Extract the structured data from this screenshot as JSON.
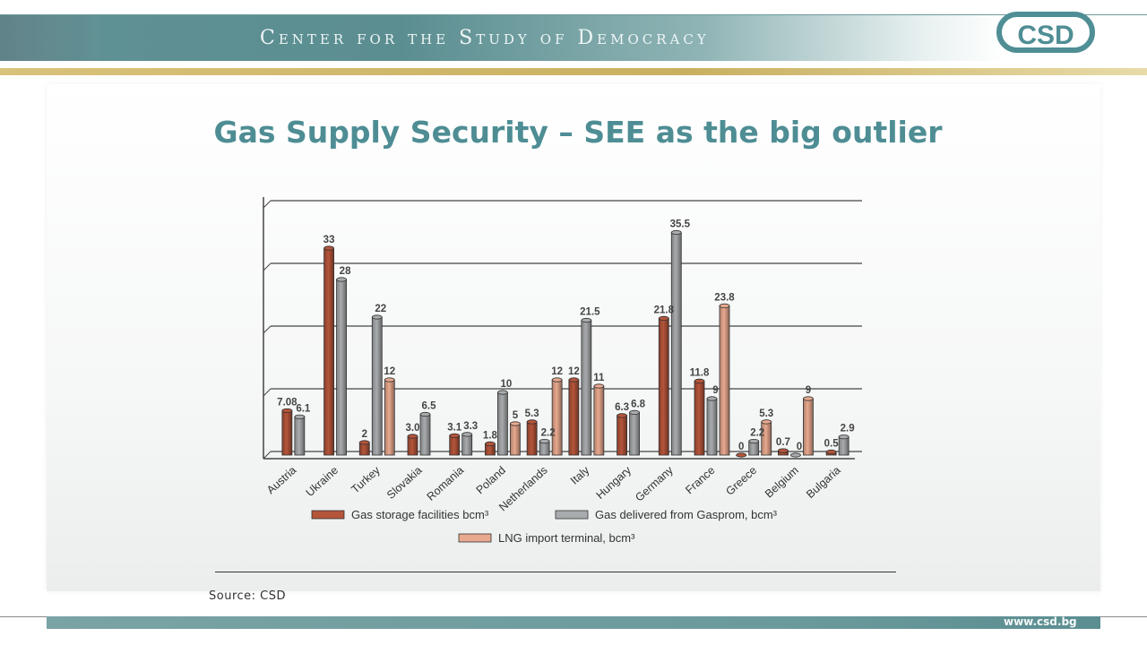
{
  "header": {
    "org_name": "Center for the Study of Democracy",
    "logo_text": "CSD"
  },
  "slide": {
    "title": "Gas Supply Security – SEE as the big outlier",
    "source": "Source: CSD",
    "footer_url": "www.csd.bg"
  },
  "colors": {
    "accent": "#4e8d94",
    "storage": "#b5553a",
    "gazprom": "#a9acae",
    "lng": "#e8a98e"
  },
  "chart_data": {
    "type": "bar",
    "categories": [
      "Austria",
      "Ukraine",
      "Turkey",
      "Slovakia",
      "Romania",
      "Poland",
      "Netherlands",
      "Italy",
      "Hungary",
      "Germany",
      "France",
      "Greece",
      "Belgium",
      "Bulgaria"
    ],
    "series": [
      {
        "name": "Gas storage facilities bcm³",
        "values": [
          7.08,
          33,
          2,
          3.0,
          3.1,
          1.8,
          5.3,
          12,
          6.3,
          21.8,
          11.8,
          0,
          0.7,
          0.5
        ],
        "labels": [
          "7.08",
          "33",
          "2",
          "3.0",
          "3.1",
          "1.8",
          "5.3",
          "12",
          "6.3",
          "21.8",
          "11.8",
          "0",
          "0.7",
          "0.5"
        ]
      },
      {
        "name": "Gas delivered from Gasprom, bcm³",
        "values": [
          6.1,
          28,
          22,
          6.5,
          3.3,
          10,
          2.2,
          21.5,
          6.8,
          35.5,
          9,
          2.2,
          0,
          2.9
        ],
        "labels": [
          "6.1",
          "28",
          "22",
          "6.5",
          "3.3",
          "10",
          "2.2",
          "21.5",
          "6.8",
          "35.5",
          "9",
          "2.2",
          "0",
          "2.9"
        ]
      },
      {
        "name": "LNG import terminal, bcm³",
        "values": [
          null,
          null,
          12,
          null,
          null,
          5,
          12,
          11,
          null,
          null,
          23.8,
          5.3,
          9,
          null
        ],
        "labels": [
          null,
          null,
          "12",
          null,
          null,
          "5",
          "12",
          "11",
          null,
          null,
          "23.8",
          "5.3",
          "9",
          null
        ]
      }
    ],
    "ylim": [
      0,
      40
    ],
    "grid": true,
    "legend": "bottom",
    "xlabel": "",
    "ylabel": ""
  }
}
